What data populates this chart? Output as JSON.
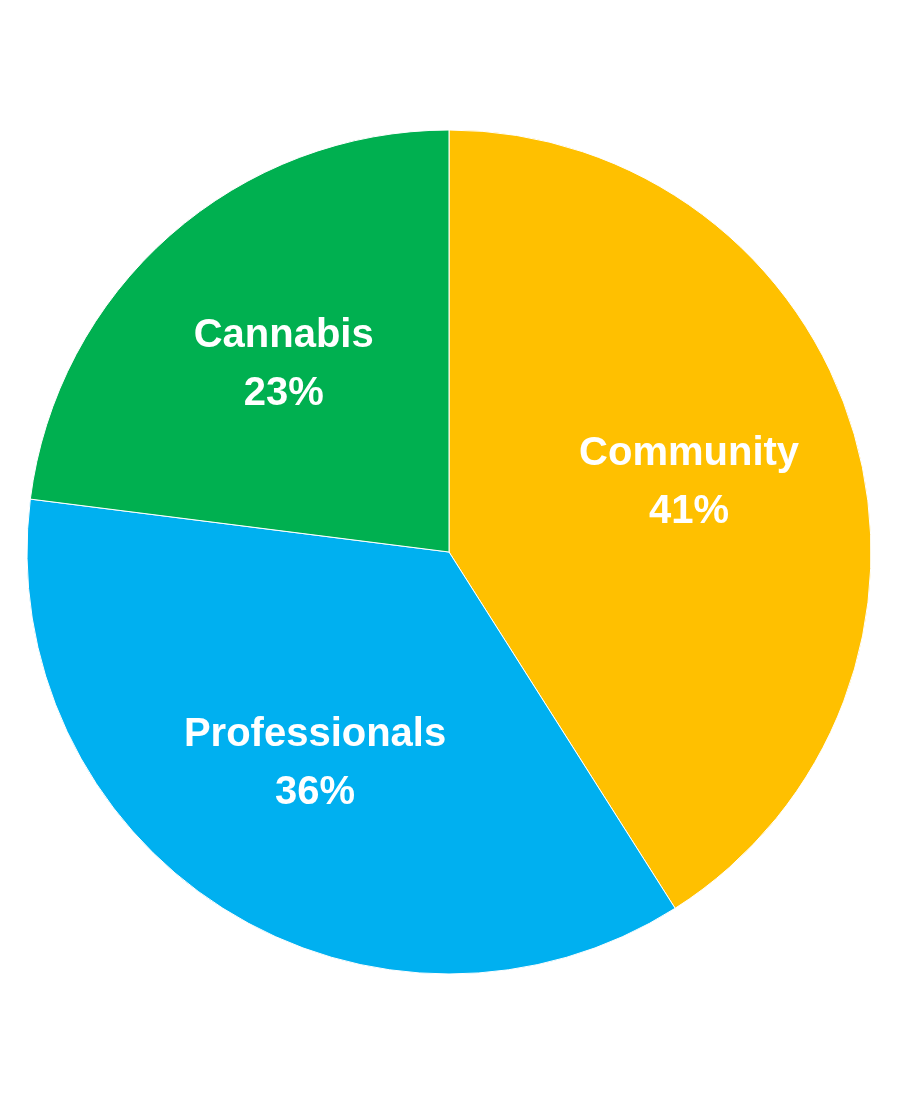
{
  "chart_data": {
    "type": "pie",
    "categories": [
      "Community",
      "Professionals",
      "Cannabis"
    ],
    "values": [
      41,
      36,
      23
    ],
    "colors": [
      "#ffc000",
      "#00b0f0",
      "#00b050"
    ],
    "value_labels": [
      "41%",
      "36%",
      "23%"
    ],
    "legend": false
  }
}
